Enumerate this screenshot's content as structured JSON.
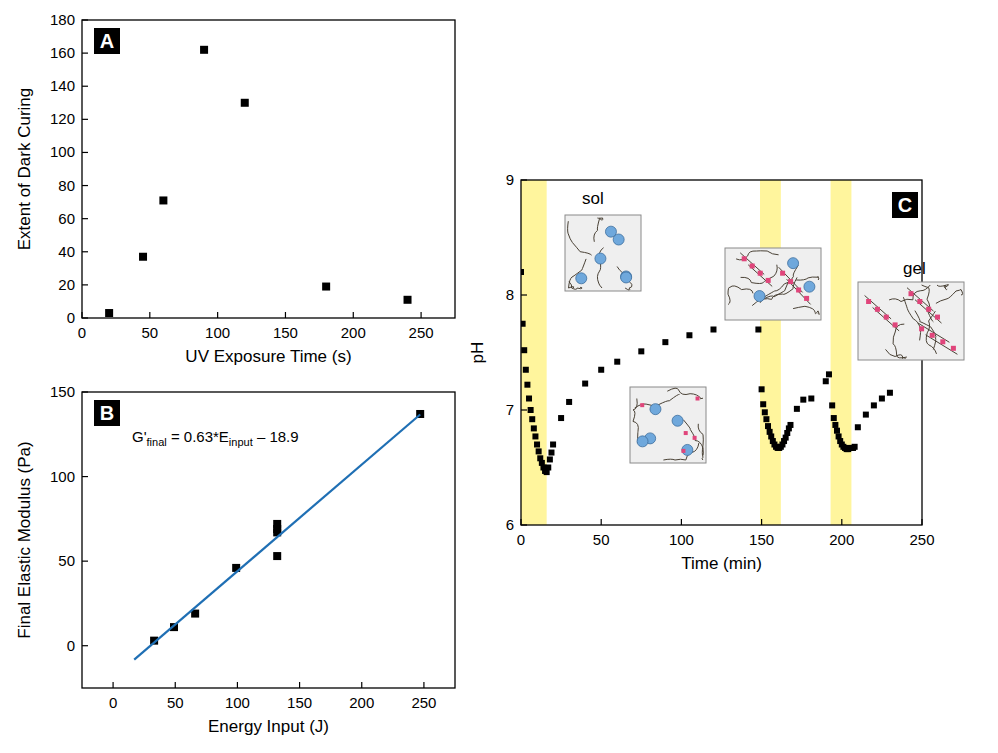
{
  "chart_data": [
    {
      "type": "scatter",
      "panel_label": "A",
      "x_label": "UV Exposure Time (s)",
      "y_label": "Extent of Dark Curing",
      "xlim": [
        0,
        275
      ],
      "xticks": [
        0,
        50,
        100,
        150,
        200,
        250
      ],
      "ylim": [
        0,
        180
      ],
      "yticks": [
        0,
        20,
        40,
        60,
        80,
        100,
        120,
        140,
        160,
        180
      ],
      "series": [
        {
          "type": "scatter",
          "marker": "square",
          "color": "#000000",
          "x": [
            20,
            45,
            60,
            90,
            120,
            180,
            240
          ],
          "values": [
            3,
            37,
            71,
            162,
            130,
            19,
            11
          ]
        }
      ]
    },
    {
      "type": "scatter",
      "panel_label": "B",
      "x_label": "Energy Input (J)",
      "y_label": "Final Elastic Modulus (Pa)",
      "annotation": [
        "G'",
        "final",
        " = 0.63*E",
        "input",
        " – 18.9"
      ],
      "xlim": [
        -25,
        275
      ],
      "xticks": [
        0,
        50,
        100,
        150,
        200,
        250
      ],
      "ylim": [
        -25,
        150
      ],
      "yticks": [
        0,
        50,
        100,
        150
      ],
      "series": [
        {
          "type": "scatter",
          "marker": "square",
          "color": "#000000",
          "x": [
            33,
            49,
            66,
            99,
            132,
            132,
            132,
            132,
            247
          ],
          "values": [
            3,
            11,
            19,
            46,
            53,
            67,
            69,
            72,
            137
          ]
        },
        {
          "type": "line",
          "line_style": "solid",
          "color": "#1f6fb4",
          "x": [
            17,
            247
          ],
          "values": [
            -8.2,
            136.7
          ]
        }
      ]
    },
    {
      "type": "scatter",
      "panel_label": "C",
      "x_label": "Time (min)",
      "y_label": "pH",
      "annotations": [
        "sol",
        "gel"
      ],
      "uv_intervals": [
        [
          0,
          16
        ],
        [
          149,
          162
        ],
        [
          193,
          206
        ]
      ],
      "xlim": [
        0,
        250
      ],
      "xticks": [
        0,
        50,
        100,
        150,
        200,
        250
      ],
      "ylim": [
        6,
        9
      ],
      "yticks": [
        6,
        7,
        8,
        9
      ],
      "series": [
        {
          "type": "scatter",
          "marker": "square",
          "color": "#000000",
          "x": [
            0,
            1,
            2,
            3,
            4,
            5,
            6,
            7,
            8,
            9,
            10,
            11,
            12,
            13,
            14,
            15,
            16,
            17,
            18,
            19,
            20,
            25,
            30,
            40,
            50,
            60,
            75,
            90,
            105,
            120,
            148,
            150,
            151,
            152,
            153,
            154,
            155,
            156,
            157,
            158,
            159,
            160,
            161,
            162,
            163,
            164,
            165,
            166,
            167,
            168,
            172,
            176,
            181,
            190,
            192,
            194,
            195,
            196,
            197,
            198,
            199,
            200,
            201,
            202,
            203,
            204,
            205,
            206,
            207,
            208,
            210,
            215,
            220,
            225,
            230
          ],
          "values": [
            8.2,
            7.75,
            7.52,
            7.35,
            7.22,
            7.1,
            7.0,
            6.92,
            6.84,
            6.77,
            6.7,
            6.64,
            6.58,
            6.54,
            6.5,
            6.47,
            6.46,
            6.5,
            6.57,
            6.63,
            6.7,
            6.93,
            7.07,
            7.23,
            7.35,
            7.42,
            7.51,
            7.59,
            7.65,
            7.7,
            7.7,
            7.18,
            7.05,
            6.98,
            6.92,
            6.86,
            6.81,
            6.77,
            6.73,
            6.7,
            6.68,
            6.67,
            6.67,
            6.68,
            6.7,
            6.73,
            6.76,
            6.8,
            6.84,
            6.87,
            7.01,
            7.09,
            7.1,
            7.25,
            7.31,
            7.04,
            6.93,
            6.87,
            6.82,
            6.77,
            6.73,
            6.7,
            6.68,
            6.67,
            6.66,
            6.66,
            6.67,
            6.67,
            6.67,
            6.68,
            6.85,
            6.96,
            7.04,
            7.1,
            7.15
          ]
        }
      ]
    }
  ]
}
